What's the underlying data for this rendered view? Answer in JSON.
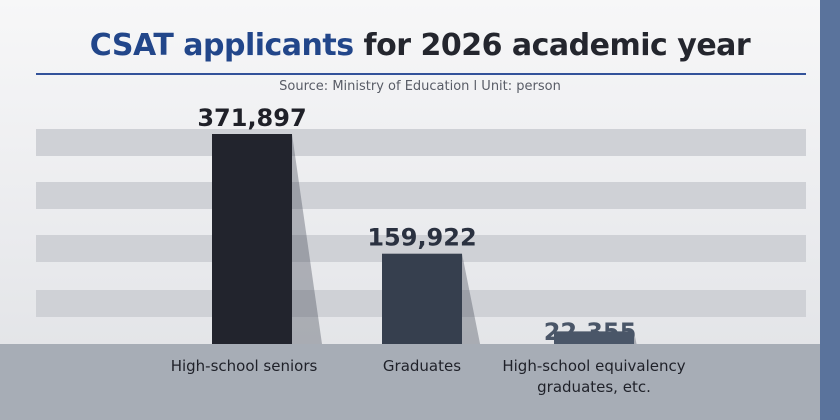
{
  "chart_data": {
    "type": "bar",
    "title_accent": "CSAT applicants",
    "title_rest": " for 2026 academic year",
    "subtitle": "Source: Ministry of Education  l  Unit: person",
    "categories": [
      "High-school seniors",
      "Graduates",
      "High-school equivalency graduates, etc."
    ],
    "category_lines": [
      [
        "High-school seniors"
      ],
      [
        "Graduates"
      ],
      [
        "High-school equivalency",
        "graduates, etc."
      ]
    ],
    "values": [
      371897,
      159922,
      22355
    ],
    "value_labels": [
      "371,897",
      "159,922",
      "22,355"
    ],
    "bar_colors": [
      "#22242d",
      "#363f4e",
      "#4a5668"
    ],
    "label_colors": [
      "#1f2028",
      "#2a3140",
      "#4a5668"
    ],
    "grid": true,
    "xlabel": "",
    "ylabel": ""
  }
}
